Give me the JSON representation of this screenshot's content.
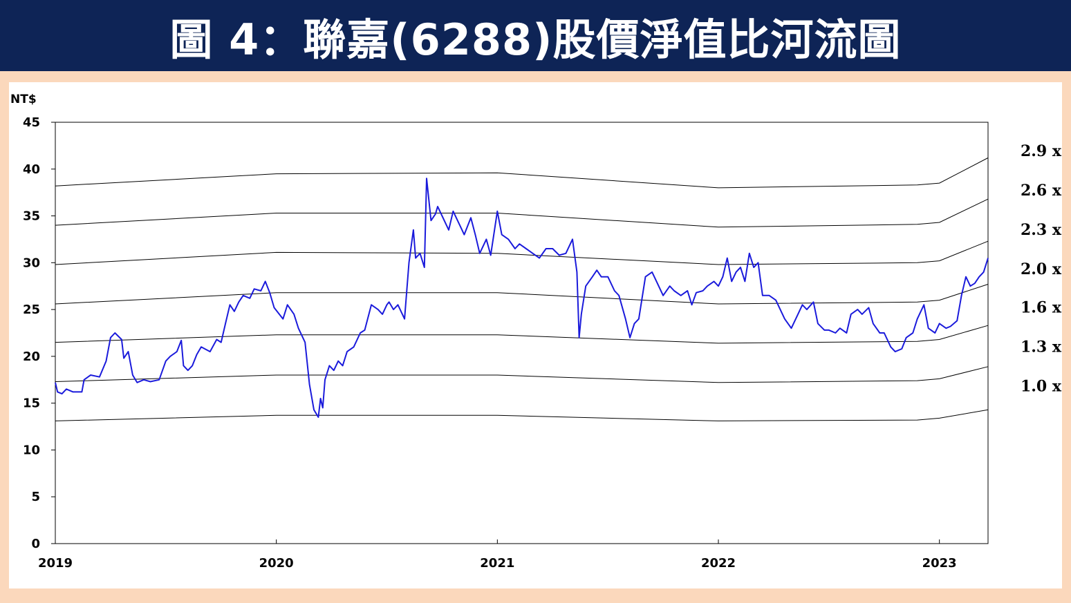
{
  "header": {
    "title": "圖 4：聯嘉(6288)股價淨值比河流圖"
  },
  "colors": {
    "banner_bg": "#0e2456",
    "page_bg": "#fbd8bc",
    "price_line": "#1a1adb",
    "band_line": "#000000"
  },
  "chart_data": {
    "type": "line",
    "title": "",
    "ylabel": "NT$",
    "xlabel": "",
    "ylim": [
      0,
      45
    ],
    "xlim": [
      2019.0,
      2023.22
    ],
    "yticks": [
      "0",
      "5",
      "10",
      "15",
      "20",
      "25",
      "30",
      "35",
      "40",
      "45"
    ],
    "xticks": [
      "2019",
      "2020",
      "2021",
      "2022",
      "2023"
    ],
    "grid": false,
    "bands": [
      {
        "label": "2.9 x",
        "x": [
          2019.0,
          2020.0,
          2021.0,
          2022.0,
          2022.9,
          2023.0,
          2023.22
        ],
        "y": [
          38.2,
          39.5,
          39.6,
          38.0,
          38.3,
          38.5,
          41.2
        ]
      },
      {
        "label": "2.6 x",
        "x": [
          2019.0,
          2020.0,
          2021.0,
          2022.0,
          2022.9,
          2023.0,
          2023.22
        ],
        "y": [
          34.0,
          35.3,
          35.3,
          33.8,
          34.1,
          34.3,
          36.8
        ]
      },
      {
        "label": "2.3 x",
        "x": [
          2019.0,
          2020.0,
          2021.0,
          2022.0,
          2022.9,
          2023.0,
          2023.22
        ],
        "y": [
          29.8,
          31.1,
          31.0,
          29.8,
          30.0,
          30.2,
          32.3
        ]
      },
      {
        "label": "2.0 x",
        "x": [
          2019.0,
          2020.0,
          2021.0,
          2022.0,
          2022.9,
          2023.0,
          2023.22
        ],
        "y": [
          25.6,
          26.8,
          26.8,
          25.6,
          25.8,
          26.0,
          27.7
        ]
      },
      {
        "label": "1.6 x",
        "x": [
          2019.0,
          2020.0,
          2021.0,
          2022.0,
          2022.9,
          2023.0,
          2023.22
        ],
        "y": [
          21.5,
          22.3,
          22.3,
          21.4,
          21.6,
          21.8,
          23.3
        ]
      },
      {
        "label": "1.3 x",
        "x": [
          2019.0,
          2020.0,
          2021.0,
          2022.0,
          2022.9,
          2023.0,
          2023.22
        ],
        "y": [
          17.3,
          18.0,
          18.0,
          17.2,
          17.4,
          17.6,
          18.9
        ]
      },
      {
        "label": "1.0 x",
        "x": [
          2019.0,
          2020.0,
          2021.0,
          2022.0,
          2022.9,
          2023.0,
          2023.22
        ],
        "y": [
          13.1,
          13.7,
          13.7,
          13.1,
          13.2,
          13.4,
          14.3
        ]
      }
    ],
    "series": [
      {
        "x": [
          2019.0,
          2019.01,
          2019.03,
          2019.05,
          2019.08,
          2019.12,
          2019.13,
          2019.16,
          2019.2,
          2019.23,
          2019.25,
          2019.27,
          2019.3,
          2019.31,
          2019.33,
          2019.35,
          2019.37,
          2019.4,
          2019.43,
          2019.47,
          2019.5,
          2019.52,
          2019.55,
          2019.57,
          2019.58,
          2019.6,
          2019.62,
          2019.64,
          2019.66,
          2019.7,
          2019.73,
          2019.75,
          2019.77,
          2019.79,
          2019.81,
          2019.83,
          2019.85,
          2019.88,
          2019.9,
          2019.93,
          2019.95,
          2019.97,
          2019.99,
          2020.03,
          2020.05,
          2020.08,
          2020.1,
          2020.13,
          2020.15,
          2020.17,
          2020.19,
          2020.2,
          2020.21,
          2020.22,
          2020.24,
          2020.26,
          2020.28,
          2020.3,
          2020.32,
          2020.35,
          2020.38,
          2020.4,
          2020.43,
          2020.46,
          2020.48,
          2020.5,
          2020.51,
          2020.53,
          2020.55,
          2020.58,
          2020.6,
          2020.62,
          2020.63,
          2020.65,
          2020.67,
          2020.68,
          2020.7,
          2020.72,
          2020.73,
          2020.75,
          2020.78,
          2020.8,
          2020.83,
          2020.85,
          2020.88,
          2020.9,
          2020.92,
          2020.95,
          2020.97,
          2021.0,
          2021.02,
          2021.05,
          2021.08,
          2021.1,
          2021.13,
          2021.16,
          2021.19,
          2021.22,
          2021.25,
          2021.28,
          2021.31,
          2021.34,
          2021.36,
          2021.37,
          2021.38,
          2021.4,
          2021.43,
          2021.45,
          2021.47,
          2021.5,
          2021.53,
          2021.55,
          2021.58,
          2021.6,
          2021.62,
          2021.64,
          2021.67,
          2021.7,
          2021.72,
          2021.75,
          2021.78,
          2021.8,
          2021.83,
          2021.86,
          2021.88,
          2021.9,
          2021.93,
          2021.95,
          2021.98,
          2022.0,
          2022.02,
          2022.04,
          2022.06,
          2022.08,
          2022.1,
          2022.12,
          2022.14,
          2022.16,
          2022.18,
          2022.2,
          2022.23,
          2022.26,
          2022.3,
          2022.33,
          2022.36,
          2022.38,
          2022.4,
          2022.43,
          2022.45,
          2022.48,
          2022.5,
          2022.53,
          2022.55,
          2022.58,
          2022.6,
          2022.63,
          2022.65,
          2022.68,
          2022.7,
          2022.73,
          2022.75,
          2022.78,
          2022.8,
          2022.83,
          2022.85,
          2022.88,
          2022.9,
          2022.93,
          2022.95,
          2022.98,
          2023.0,
          2023.03,
          2023.05,
          2023.08,
          2023.1,
          2023.12,
          2023.14,
          2023.16,
          2023.18,
          2023.2,
          2023.22
        ],
        "y": [
          17.2,
          16.2,
          16.0,
          16.5,
          16.2,
          16.2,
          17.5,
          18.0,
          17.8,
          19.5,
          22.0,
          22.5,
          21.8,
          19.8,
          20.5,
          18.0,
          17.2,
          17.5,
          17.3,
          17.5,
          19.5,
          20.0,
          20.5,
          21.7,
          19.0,
          18.5,
          19.0,
          20.2,
          21.0,
          20.5,
          21.8,
          21.5,
          23.5,
          25.5,
          24.8,
          25.8,
          26.5,
          26.2,
          27.2,
          27.0,
          28.0,
          26.8,
          25.2,
          24.0,
          25.5,
          24.5,
          23.0,
          21.5,
          17.0,
          14.3,
          13.5,
          15.5,
          14.5,
          17.5,
          19.0,
          18.5,
          19.5,
          19.0,
          20.5,
          21.0,
          22.5,
          22.8,
          25.5,
          25.0,
          24.5,
          25.5,
          25.8,
          25.0,
          25.5,
          24.0,
          30.0,
          33.5,
          30.5,
          31.0,
          29.5,
          39.0,
          34.5,
          35.2,
          36.0,
          35.0,
          33.5,
          35.5,
          34.0,
          33.0,
          34.8,
          33.0,
          31.0,
          32.5,
          30.8,
          35.5,
          33.0,
          32.5,
          31.5,
          32.0,
          31.5,
          31.0,
          30.5,
          31.5,
          31.5,
          30.8,
          31.0,
          32.5,
          29.0,
          22.0,
          24.5,
          27.5,
          28.5,
          29.2,
          28.5,
          28.5,
          27.0,
          26.5,
          24.0,
          22.0,
          23.5,
          24.0,
          28.5,
          29.0,
          28.0,
          26.5,
          27.5,
          27.0,
          26.5,
          27.0,
          25.5,
          26.8,
          27.0,
          27.5,
          28.0,
          27.5,
          28.5,
          30.5,
          28.0,
          29.0,
          29.5,
          28.0,
          31.0,
          29.5,
          30.0,
          26.5,
          26.5,
          26.0,
          24.0,
          23.0,
          24.5,
          25.5,
          25.0,
          25.8,
          23.5,
          22.8,
          22.8,
          22.5,
          23.0,
          22.5,
          24.5,
          25.0,
          24.5,
          25.2,
          23.5,
          22.5,
          22.5,
          21.0,
          20.5,
          20.8,
          22.0,
          22.5,
          24.0,
          25.5,
          23.0,
          22.5,
          23.5,
          23.0,
          23.2,
          23.8,
          26.5,
          28.5,
          27.5,
          27.8,
          28.5,
          29.0,
          30.5
        ]
      }
    ]
  }
}
